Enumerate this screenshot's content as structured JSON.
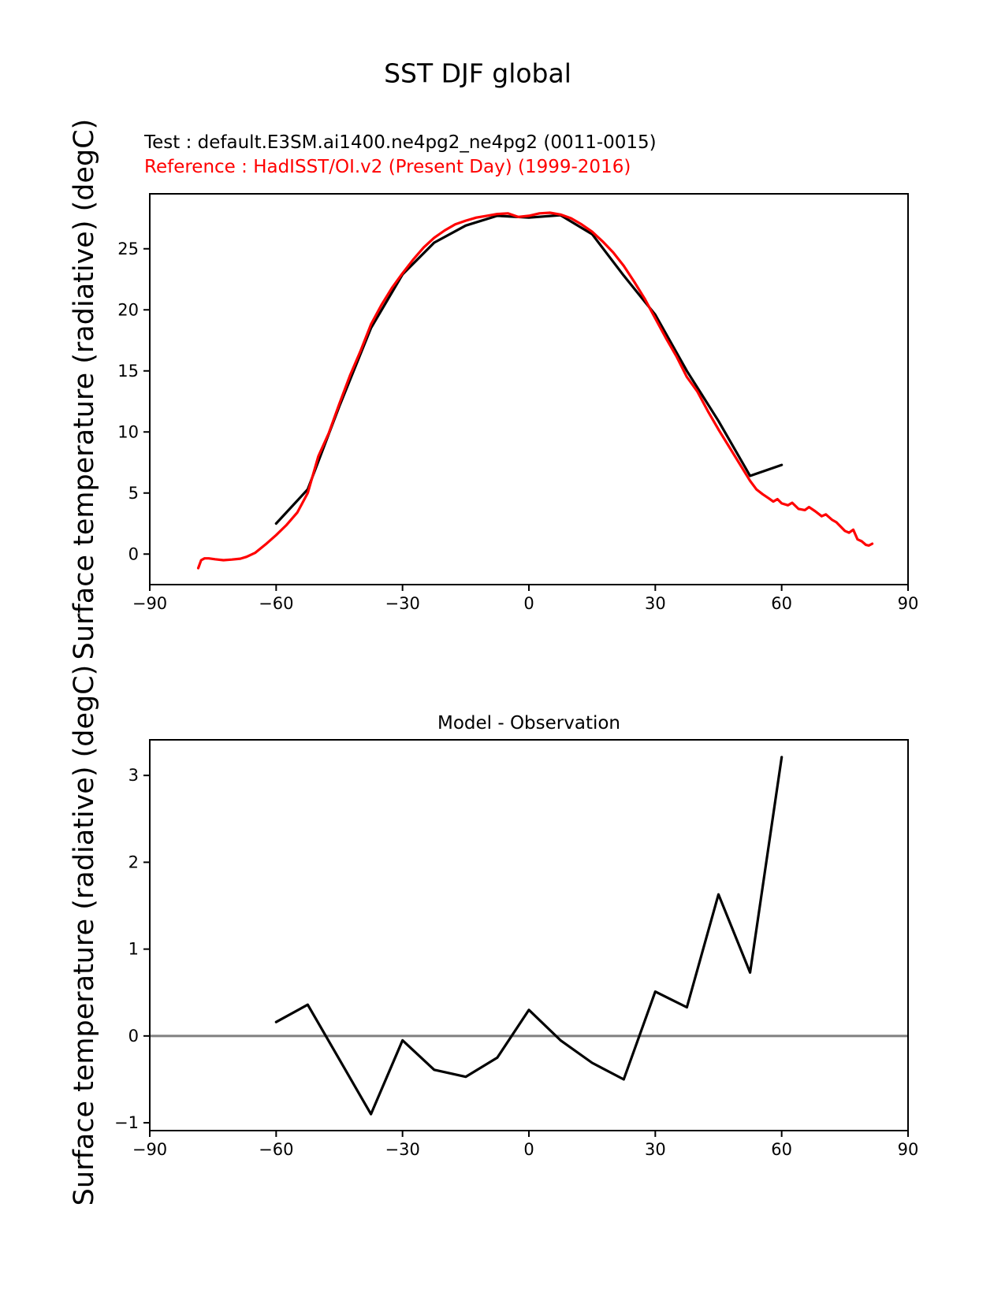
{
  "header": {
    "title": "SST DJF global",
    "test_label": "Test : default.E3SM.ai1400.ne4pg2_ne4pg2 (0011-0015)",
    "reference_label": "Reference : HadISST/OI.v2 (Present Day) (1999-2016)",
    "test_color": "#000000",
    "reference_color": "#ff0000"
  },
  "chart_data": [
    {
      "type": "line",
      "title": "",
      "xlabel": "",
      "ylabel": "Surface temperature (radiative) (degC)",
      "xlim": [
        -90,
        90
      ],
      "ylim": [
        -2.5,
        29.5
      ],
      "xticks": [
        -90,
        -60,
        -30,
        0,
        30,
        60,
        90
      ],
      "yticks": [
        0,
        5,
        10,
        15,
        20,
        25
      ],
      "grid": false,
      "legend_position": "upper-left-above-axes",
      "series": [
        {
          "key": "model",
          "name": "Test : default.E3SM.ai1400.ne4pg2_ne4pg2 (0011-0015)",
          "color": "#000000",
          "width": 3.2,
          "points": [
            [
              -60,
              2.5
            ],
            [
              -52.5,
              5.3
            ],
            [
              -45,
              12.1
            ],
            [
              -37.5,
              18.5
            ],
            [
              -30,
              22.9
            ],
            [
              -22.5,
              25.5
            ],
            [
              -15,
              26.9
            ],
            [
              -7.5,
              27.7
            ],
            [
              0,
              27.55
            ],
            [
              7.5,
              27.75
            ],
            [
              15,
              26.2
            ],
            [
              22.5,
              22.8
            ],
            [
              30,
              19.6
            ],
            [
              37.5,
              15.0
            ],
            [
              45,
              10.9
            ],
            [
              52.5,
              6.4
            ],
            [
              60,
              7.3
            ]
          ]
        },
        {
          "key": "reference",
          "name": "Reference : HadISST/OI.v2 (Present Day) (1999-2016)",
          "color": "#ff0000",
          "width": 3.2,
          "points": [
            [
              -78.5,
              -1.15
            ],
            [
              -77.8,
              -0.5
            ],
            [
              -77,
              -0.35
            ],
            [
              -76,
              -0.35
            ],
            [
              -74.5,
              -0.42
            ],
            [
              -72.5,
              -0.5
            ],
            [
              -70.5,
              -0.45
            ],
            [
              -68.5,
              -0.38
            ],
            [
              -67,
              -0.22
            ],
            [
              -65,
              0.1
            ],
            [
              -62.5,
              0.8
            ],
            [
              -60,
              1.55
            ],
            [
              -57.5,
              2.4
            ],
            [
              -55,
              3.4
            ],
            [
              -52.5,
              5.0
            ],
            [
              -50,
              8.0
            ],
            [
              -47.5,
              9.9
            ],
            [
              -45,
              12.3
            ],
            [
              -42.5,
              14.6
            ],
            [
              -40,
              16.6
            ],
            [
              -37.5,
              18.8
            ],
            [
              -35,
              20.4
            ],
            [
              -32.5,
              21.8
            ],
            [
              -30,
              23.0
            ],
            [
              -27.5,
              24.1
            ],
            [
              -25,
              25.1
            ],
            [
              -22.5,
              25.9
            ],
            [
              -20,
              26.5
            ],
            [
              -17.5,
              27.0
            ],
            [
              -15,
              27.3
            ],
            [
              -12.5,
              27.55
            ],
            [
              -10,
              27.7
            ],
            [
              -7.5,
              27.85
            ],
            [
              -5,
              27.9
            ],
            [
              -2.5,
              27.6
            ],
            [
              0,
              27.7
            ],
            [
              2.5,
              27.9
            ],
            [
              5,
              27.95
            ],
            [
              7.5,
              27.8
            ],
            [
              10,
              27.5
            ],
            [
              12.5,
              27.0
            ],
            [
              15,
              26.4
            ],
            [
              17.5,
              25.6
            ],
            [
              20,
              24.7
            ],
            [
              22.5,
              23.6
            ],
            [
              25,
              22.3
            ],
            [
              27.5,
              20.9
            ],
            [
              30,
              19.3
            ],
            [
              32.5,
              17.7
            ],
            [
              35,
              16.2
            ],
            [
              37.5,
              14.5
            ],
            [
              40,
              13.3
            ],
            [
              42.5,
              11.7
            ],
            [
              45,
              10.2
            ],
            [
              47.5,
              8.8
            ],
            [
              50,
              7.4
            ],
            [
              52.5,
              6.0
            ],
            [
              54,
              5.3
            ],
            [
              55.5,
              4.9
            ],
            [
              57,
              4.55
            ],
            [
              58,
              4.3
            ],
            [
              59,
              4.5
            ],
            [
              60,
              4.15
            ],
            [
              61.5,
              4.0
            ],
            [
              62.5,
              4.2
            ],
            [
              64,
              3.7
            ],
            [
              65.5,
              3.6
            ],
            [
              66.5,
              3.85
            ],
            [
              68,
              3.5
            ],
            [
              69.5,
              3.1
            ],
            [
              70.5,
              3.25
            ],
            [
              72,
              2.8
            ],
            [
              73,
              2.6
            ],
            [
              75,
              1.9
            ],
            [
              76,
              1.75
            ],
            [
              77,
              2.0
            ],
            [
              78,
              1.2
            ],
            [
              79,
              1.05
            ],
            [
              80,
              0.75
            ],
            [
              80.7,
              0.7
            ],
            [
              81.5,
              0.85
            ]
          ]
        }
      ]
    },
    {
      "type": "line",
      "title": "Model - Observation",
      "xlabel": "",
      "ylabel": "Surface temperature (radiative) (degC)",
      "xlim": [
        -90,
        90
      ],
      "ylim": [
        -1.09,
        3.41
      ],
      "xticks": [
        -90,
        -60,
        -30,
        0,
        30,
        60,
        90
      ],
      "yticks": [
        -1,
        0,
        1,
        2,
        3
      ],
      "grid": false,
      "zero_line": {
        "value": 0,
        "color": "#808080",
        "width": 3
      },
      "series": [
        {
          "key": "difference",
          "name": "Model - Observation",
          "color": "#000000",
          "width": 3.2,
          "points": [
            [
              -60,
              0.16
            ],
            [
              -52.5,
              0.36
            ],
            [
              -45,
              -0.27
            ],
            [
              -37.5,
              -0.9
            ],
            [
              -30,
              -0.05
            ],
            [
              -22.5,
              -0.39
            ],
            [
              -15,
              -0.47
            ],
            [
              -7.5,
              -0.25
            ],
            [
              0,
              0.3
            ],
            [
              7.5,
              -0.05
            ],
            [
              15,
              -0.31
            ],
            [
              22.5,
              -0.5
            ],
            [
              30,
              0.51
            ],
            [
              37.5,
              0.33
            ],
            [
              45,
              1.63
            ],
            [
              52.5,
              0.73
            ],
            [
              60,
              3.21
            ]
          ]
        }
      ]
    }
  ]
}
